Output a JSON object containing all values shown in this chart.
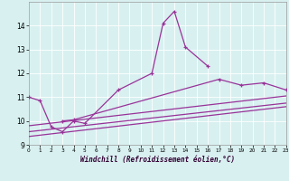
{
  "bg_color": "#d8f0f0",
  "line_color": "#993399",
  "xlabel": "Windchill (Refroidissement éolien,°C)",
  "xmin": 0,
  "xmax": 23,
  "ymin": 9,
  "ymax": 15,
  "yticks": [
    9,
    10,
    11,
    12,
    13,
    14
  ],
  "xticks": [
    0,
    1,
    2,
    3,
    4,
    5,
    6,
    7,
    8,
    9,
    10,
    11,
    12,
    13,
    14,
    15,
    16,
    17,
    18,
    19,
    20,
    21,
    22,
    23
  ],
  "series1_x": [
    0,
    1,
    2,
    3,
    4,
    5,
    8,
    11,
    12,
    13,
    14,
    16
  ],
  "series1_y": [
    11.0,
    10.85,
    9.75,
    9.55,
    10.0,
    9.9,
    11.3,
    12.0,
    14.1,
    14.6,
    13.1,
    12.3
  ],
  "series2_x": [
    3,
    4,
    17,
    19,
    21,
    23
  ],
  "series2_y": [
    10.0,
    10.05,
    11.75,
    11.5,
    11.6,
    11.3
  ],
  "line1_x": [
    0,
    23
  ],
  "line1_y": [
    9.8,
    11.05
  ],
  "line2_x": [
    0,
    23
  ],
  "line2_y": [
    9.55,
    10.75
  ],
  "line3_x": [
    0,
    23
  ],
  "line3_y": [
    9.35,
    10.6
  ]
}
